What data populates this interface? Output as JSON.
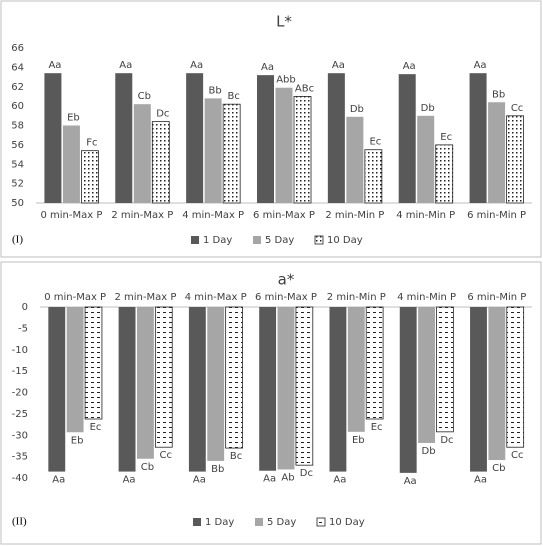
{
  "chart_data": [
    {
      "type": "bar",
      "title": "L*",
      "panel_label": "(I)",
      "x_axis_position": "bottom",
      "categories": [
        "0 min-Max P",
        "2 min-Max P",
        "4 min-Max P",
        "6 min-Max P",
        "2 min-Min P",
        "4 min-Min P",
        "6 min-Min P"
      ],
      "series": [
        {
          "name": "1 Day",
          "color": "#595959",
          "values": [
            63.4,
            63.4,
            63.4,
            63.2,
            63.4,
            63.3,
            63.4
          ],
          "letters": [
            "Aa",
            "Aa",
            "Aa",
            "Aa",
            "Aa",
            "Aa",
            "Aa"
          ]
        },
        {
          "name": "5 Day",
          "color": "#a6a6a6",
          "values": [
            58.0,
            60.2,
            60.8,
            61.9,
            58.9,
            59.0,
            60.4
          ],
          "letters": [
            "Eb",
            "Cb",
            "Bb",
            "Abb",
            "Db",
            "Db",
            "Bb"
          ]
        },
        {
          "name": "10 Day",
          "color": "#ffffff",
          "pattern": "dots",
          "values": [
            55.4,
            58.4,
            60.2,
            61.0,
            55.5,
            56.0,
            59.0
          ],
          "letters": [
            "Fc",
            "Dc",
            "Bc",
            "ABc",
            "Ec",
            "Ec",
            "Cc"
          ]
        }
      ],
      "ylim": [
        50,
        66
      ],
      "yticks": [
        50,
        52,
        54,
        56,
        58,
        60,
        62,
        64,
        66
      ],
      "legend": "bottom"
    },
    {
      "type": "bar",
      "title": "a*",
      "panel_label": "(II)",
      "x_axis_position": "top",
      "categories": [
        "0 min-Max P",
        "2 min-Max P",
        "4 min-Max P",
        "6 min-Max P",
        "2 min-Min P",
        "4 min-Min P",
        "6 min-Min P"
      ],
      "series": [
        {
          "name": "1 Day",
          "color": "#595959",
          "values": [
            -38.5,
            -38.5,
            -38.5,
            -38.3,
            -38.5,
            -38.8,
            -38.5
          ],
          "letters": [
            "Aa",
            "Aa",
            "Aa",
            "Aa",
            "Aa",
            "Aa",
            "Aa"
          ]
        },
        {
          "name": "5 Day",
          "color": "#a6a6a6",
          "values": [
            -29.3,
            -35.5,
            -36.0,
            -38.0,
            -29.2,
            -31.8,
            -35.8
          ],
          "letters": [
            "Eb",
            "Cb",
            "Bb",
            "Ab",
            "Eb",
            "Db",
            "Cb"
          ]
        },
        {
          "name": "10 Day",
          "color": "#ffffff",
          "pattern": "dashes",
          "values": [
            -26.2,
            -32.8,
            -33.0,
            -37.0,
            -26.2,
            -29.2,
            -32.8
          ],
          "letters": [
            "Ec",
            "Cc",
            "Bc",
            "Dc",
            "Ec",
            "Dc",
            "Cc"
          ]
        }
      ],
      "ylim": [
        -40,
        0
      ],
      "yticks": [
        0,
        -5,
        -10,
        -15,
        -20,
        -25,
        -30,
        -35,
        -40
      ],
      "legend": "bottom"
    }
  ]
}
